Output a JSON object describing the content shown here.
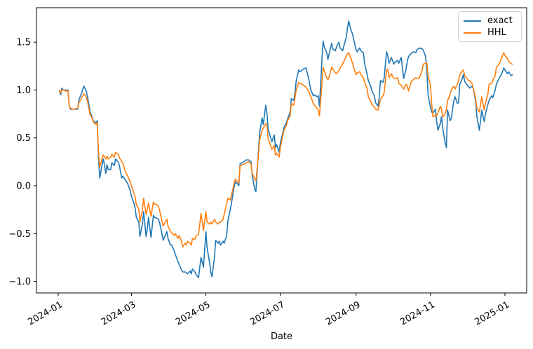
{
  "figure": {
    "background": "#ffffff",
    "frame_color": "#000000"
  },
  "chart_data": {
    "type": "line",
    "title": "",
    "xlabel": "Date",
    "ylabel": "",
    "grid": false,
    "legend_position": "upper right",
    "x_tick_labels": [
      "2024-01",
      "2024-03",
      "2024-05",
      "2024-07",
      "2024-09",
      "2024-11",
      "2025-01"
    ],
    "x_tick_days": [
      0,
      60,
      121,
      182,
      244,
      305,
      366
    ],
    "xlim_days": [
      -17.8,
      383.8
    ],
    "ylim": [
      -1.12,
      1.86
    ],
    "y_ticks": [
      -1.0,
      -0.5,
      0.0,
      0.5,
      1.0,
      1.5
    ],
    "y_tick_labels": [
      "−1.0",
      "−0.5",
      "0.0",
      "0.5",
      "1.0",
      "1.5"
    ],
    "days": [
      1,
      2,
      3,
      4,
      6,
      8,
      9,
      10,
      12,
      13,
      16,
      17,
      19,
      21,
      23,
      24,
      26,
      28,
      29,
      31,
      32,
      33,
      34,
      36,
      37,
      39,
      40,
      41,
      43,
      44,
      46,
      47,
      49,
      50,
      52,
      53,
      55,
      56,
      57,
      59,
      60,
      62,
      63,
      64,
      66,
      67,
      69,
      70,
      72,
      73,
      74,
      76,
      78,
      79,
      81,
      82,
      83,
      85,
      86,
      89,
      90,
      92,
      93,
      95,
      96,
      98,
      99,
      101,
      102,
      104,
      105,
      106,
      108,
      109,
      110,
      112,
      113,
      115,
      116,
      117,
      119,
      121,
      122,
      124,
      125,
      126,
      128,
      129,
      131,
      132,
      133,
      135,
      136,
      138,
      139,
      141,
      142,
      144,
      145,
      147,
      148,
      149,
      151,
      152,
      154,
      156,
      158,
      159,
      161,
      162,
      164,
      165,
      167,
      168,
      170,
      171,
      172,
      175,
      177,
      178,
      179,
      181,
      182,
      184,
      185,
      187,
      188,
      190,
      191,
      193,
      194,
      195,
      197,
      198,
      200,
      201,
      203,
      204,
      205,
      207,
      209,
      210,
      212,
      213,
      214,
      216,
      217,
      218,
      220,
      221,
      222,
      224,
      225,
      227,
      228,
      230,
      231,
      233,
      234,
      236,
      237,
      238,
      240,
      241,
      243,
      244,
      245,
      247,
      248,
      250,
      251,
      253,
      254,
      256,
      257,
      259,
      260,
      262,
      263,
      264,
      266,
      267,
      269,
      270,
      271,
      273,
      275,
      276,
      278,
      279,
      281,
      283,
      285,
      286,
      287,
      289,
      291,
      293,
      294,
      296,
      298,
      299,
      301,
      302,
      303,
      305,
      306,
      307,
      309,
      310,
      311,
      313,
      314,
      315,
      317,
      318,
      319,
      321,
      322,
      324,
      325,
      327,
      328,
      329,
      331,
      332,
      333,
      335,
      336,
      337,
      339,
      340,
      342,
      343,
      345,
      346,
      347,
      349,
      350,
      352,
      353,
      355,
      356,
      358,
      359,
      360,
      362,
      363,
      365,
      366,
      368,
      369,
      371,
      372
    ],
    "series": [
      {
        "name": "exact",
        "color": "#1f77b4",
        "values": [
          1.0,
          0.95,
          1.02,
          1.0,
          1.0,
          1.0,
          0.84,
          0.8,
          0.8,
          0.8,
          0.8,
          0.9,
          0.96,
          1.04,
          0.99,
          0.93,
          0.78,
          0.71,
          0.67,
          0.66,
          0.68,
          0.3,
          0.08,
          0.22,
          0.28,
          0.13,
          0.22,
          0.17,
          0.17,
          0.24,
          0.21,
          0.28,
          0.25,
          0.22,
          0.08,
          0.1,
          0.06,
          0.04,
          0.02,
          -0.05,
          -0.11,
          -0.18,
          -0.23,
          -0.33,
          -0.38,
          -0.53,
          -0.4,
          -0.27,
          -0.53,
          -0.45,
          -0.33,
          -0.54,
          -0.31,
          -0.33,
          -0.34,
          -0.35,
          -0.38,
          -0.5,
          -0.57,
          -0.48,
          -0.55,
          -0.62,
          -0.62,
          -0.68,
          -0.72,
          -0.79,
          -0.82,
          -0.88,
          -0.9,
          -0.9,
          -0.91,
          -0.92,
          -0.89,
          -0.92,
          -0.87,
          -0.9,
          -0.93,
          -0.96,
          -0.85,
          -0.75,
          -0.85,
          -0.48,
          -0.65,
          -0.8,
          -0.9,
          -0.95,
          -0.75,
          -0.57,
          -0.6,
          -0.58,
          -0.62,
          -0.58,
          -0.6,
          -0.52,
          -0.37,
          -0.25,
          -0.18,
          -0.02,
          0.04,
          0.02,
          0.0,
          0.23,
          0.24,
          0.25,
          0.27,
          0.27,
          0.25,
          0.11,
          -0.04,
          -0.06,
          0.35,
          0.55,
          0.71,
          0.64,
          0.84,
          0.76,
          0.59,
          0.46,
          0.53,
          0.4,
          0.43,
          0.35,
          0.45,
          0.55,
          0.61,
          0.66,
          0.7,
          0.77,
          0.91,
          0.89,
          0.97,
          1.1,
          1.21,
          1.19,
          1.21,
          1.22,
          1.23,
          1.18,
          1.13,
          1.0,
          0.94,
          0.95,
          0.93,
          0.94,
          0.83,
          1.3,
          1.51,
          1.45,
          1.39,
          1.32,
          1.38,
          1.49,
          1.43,
          1.41,
          1.45,
          1.5,
          1.44,
          1.41,
          1.46,
          1.55,
          1.65,
          1.72,
          1.62,
          1.59,
          1.48,
          1.42,
          1.4,
          1.44,
          1.41,
          1.39,
          1.28,
          1.17,
          1.1,
          1.04,
          0.99,
          0.94,
          0.87,
          0.83,
          0.92,
          1.1,
          1.08,
          1.12,
          1.4,
          1.36,
          1.28,
          1.34,
          1.27,
          1.29,
          1.31,
          1.28,
          1.34,
          1.12,
          1.22,
          1.3,
          1.35,
          1.38,
          1.4,
          1.39,
          1.42,
          1.44,
          1.43,
          1.42,
          1.35,
          1.21,
          0.95,
          0.82,
          0.77,
          0.76,
          0.8,
          0.68,
          0.58,
          0.65,
          0.72,
          0.6,
          0.45,
          0.4,
          0.79,
          0.68,
          0.7,
          0.88,
          0.93,
          0.86,
          0.87,
          1.06,
          1.12,
          1.16,
          1.09,
          1.05,
          1.04,
          1.02,
          1.04,
          1.02,
          0.88,
          0.72,
          0.58,
          0.68,
          0.79,
          0.67,
          0.75,
          0.85,
          0.89,
          0.94,
          0.92,
          1.0,
          1.06,
          1.09,
          1.14,
          1.16,
          1.23,
          1.21,
          1.17,
          1.19,
          1.15,
          1.16
        ]
      },
      {
        "name": "HHL",
        "color": "#ff7f0e",
        "values": [
          1.0,
          0.97,
          1.0,
          1.0,
          0.99,
          0.99,
          0.84,
          0.81,
          0.8,
          0.8,
          0.81,
          0.87,
          0.91,
          0.96,
          0.93,
          0.88,
          0.75,
          0.7,
          0.66,
          0.64,
          0.66,
          0.35,
          0.19,
          0.29,
          0.32,
          0.28,
          0.31,
          0.28,
          0.3,
          0.33,
          0.3,
          0.35,
          0.33,
          0.3,
          0.25,
          0.24,
          0.15,
          0.12,
          0.1,
          0.04,
          0.0,
          -0.08,
          -0.11,
          -0.2,
          -0.24,
          -0.38,
          -0.25,
          -0.13,
          -0.3,
          -0.25,
          -0.18,
          -0.32,
          -0.17,
          -0.19,
          -0.2,
          -0.21,
          -0.25,
          -0.37,
          -0.42,
          -0.35,
          -0.42,
          -0.48,
          -0.49,
          -0.52,
          -0.5,
          -0.55,
          -0.52,
          -0.58,
          -0.64,
          -0.6,
          -0.62,
          -0.58,
          -0.6,
          -0.62,
          -0.55,
          -0.56,
          -0.52,
          -0.51,
          -0.4,
          -0.29,
          -0.47,
          -0.27,
          -0.38,
          -0.4,
          -0.38,
          -0.4,
          -0.35,
          -0.38,
          -0.4,
          -0.38,
          -0.38,
          -0.35,
          -0.3,
          -0.19,
          -0.13,
          -0.15,
          -0.1,
          0.02,
          0.07,
          0.04,
          0.03,
          0.21,
          0.22,
          0.22,
          0.24,
          0.25,
          0.23,
          0.13,
          0.07,
          0.05,
          0.31,
          0.48,
          0.58,
          0.6,
          0.65,
          0.63,
          0.49,
          0.38,
          0.42,
          0.32,
          0.34,
          0.3,
          0.4,
          0.52,
          0.58,
          0.63,
          0.68,
          0.73,
          0.86,
          0.84,
          0.92,
          1.0,
          1.08,
          1.07,
          1.06,
          1.05,
          1.03,
          1.01,
          0.99,
          0.93,
          0.86,
          0.84,
          0.81,
          0.79,
          0.73,
          1.05,
          1.24,
          1.2,
          1.13,
          1.11,
          1.14,
          1.24,
          1.22,
          1.18,
          1.17,
          1.2,
          1.23,
          1.27,
          1.3,
          1.35,
          1.38,
          1.39,
          1.33,
          1.28,
          1.2,
          1.16,
          1.18,
          1.19,
          1.16,
          1.13,
          1.08,
          1.02,
          0.93,
          0.88,
          0.85,
          0.82,
          0.8,
          0.79,
          0.84,
          0.9,
          0.94,
          0.97,
          1.2,
          1.22,
          1.13,
          1.17,
          1.12,
          1.12,
          1.13,
          1.07,
          1.05,
          1.01,
          1.06,
          1.04,
          0.99,
          1.08,
          1.11,
          1.13,
          1.12,
          1.13,
          1.2,
          1.27,
          1.28,
          1.28,
          1.15,
          1.05,
          0.85,
          0.72,
          0.74,
          0.73,
          0.76,
          0.83,
          0.8,
          0.72,
          0.75,
          0.8,
          0.89,
          0.95,
          1.0,
          1.04,
          1.01,
          1.06,
          1.1,
          1.16,
          1.2,
          1.21,
          1.15,
          1.12,
          1.1,
          1.1,
          1.07,
          1.02,
          0.91,
          0.81,
          0.77,
          0.85,
          0.93,
          0.79,
          0.86,
          0.96,
          1.06,
          1.07,
          1.1,
          1.15,
          1.24,
          1.25,
          1.29,
          1.33,
          1.39,
          1.36,
          1.33,
          1.3,
          1.28,
          1.27
        ]
      }
    ]
  }
}
